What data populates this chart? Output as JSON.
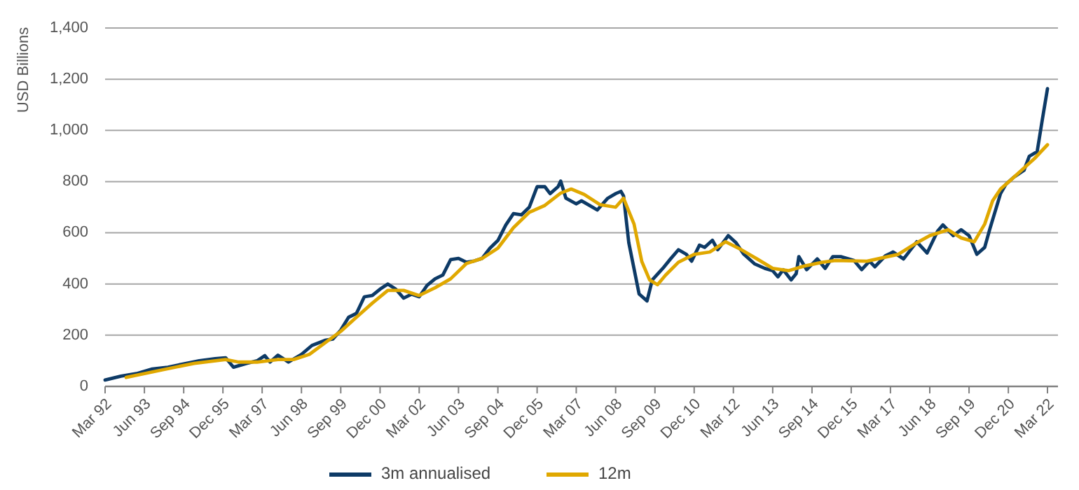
{
  "chart_data": {
    "type": "line",
    "ylabel": "USD Billions",
    "xlim": [
      "1992-03",
      "2022-07"
    ],
    "ylim": [
      0,
      1400
    ],
    "yticks": [
      0,
      {
        "value": 200,
        "label": "200"
      },
      {
        "value": 400,
        "label": "400"
      },
      {
        "value": 600,
        "label": "600"
      },
      {
        "value": 800,
        "label": "800"
      },
      {
        "value": 1000,
        "label": "1,000"
      },
      {
        "value": 1200,
        "label": "1,200"
      },
      {
        "value": 1400,
        "label": "1,400"
      }
    ],
    "xticks": [
      {
        "value": "1992-03",
        "label": "Mar 92"
      },
      {
        "value": "1993-06",
        "label": "Jun 93"
      },
      {
        "value": "1994-09",
        "label": "Sep 94"
      },
      {
        "value": "1995-12",
        "label": "Dec 95"
      },
      {
        "value": "1997-03",
        "label": "Mar 97"
      },
      {
        "value": "1998-06",
        "label": "Jun 98"
      },
      {
        "value": "1999-09",
        "label": "Sep 99"
      },
      {
        "value": "2000-12",
        "label": "Dec 00"
      },
      {
        "value": "2002-03",
        "label": "Mar 02"
      },
      {
        "value": "2003-06",
        "label": "Jun 03"
      },
      {
        "value": "2004-09",
        "label": "Sep 04"
      },
      {
        "value": "2005-12",
        "label": "Dec 05"
      },
      {
        "value": "2007-03",
        "label": "Mar 07"
      },
      {
        "value": "2008-06",
        "label": "Jun 08"
      },
      {
        "value": "2009-09",
        "label": "Sep 09"
      },
      {
        "value": "2010-12",
        "label": "Dec 10"
      },
      {
        "value": "2012-03",
        "label": "Mar 12"
      },
      {
        "value": "2013-06",
        "label": "Jun 13"
      },
      {
        "value": "2014-09",
        "label": "Sep 14"
      },
      {
        "value": "2015-12",
        "label": "Dec 15"
      },
      {
        "value": "2017-03",
        "label": "Mar 17"
      },
      {
        "value": "2018-06",
        "label": "Jun 18"
      },
      {
        "value": "2019-09",
        "label": "Sep 19"
      },
      {
        "value": "2020-12",
        "label": "Dec 20"
      },
      {
        "value": "2022-03",
        "label": "Mar 22"
      }
    ],
    "grid": "y",
    "legend": "bottom",
    "line_style": "solid",
    "series": [
      {
        "name": "3m annualised",
        "color": "#0d3a66",
        "x": [
          "1992-03",
          "1992-09",
          "1993-03",
          "1993-09",
          "1994-03",
          "1994-09",
          "1995-03",
          "1995-09",
          "1996-01",
          "1996-04",
          "1996-09",
          "1997-01",
          "1997-04",
          "1997-06",
          "1997-09",
          "1998-01",
          "1998-06",
          "1998-10",
          "1999-03",
          "1999-06",
          "1999-09",
          "1999-12",
          "2000-03",
          "2000-06",
          "2000-09",
          "2000-12",
          "2001-03",
          "2001-06",
          "2001-09",
          "2001-12",
          "2002-03",
          "2002-06",
          "2002-09",
          "2002-12",
          "2003-03",
          "2003-06",
          "2003-09",
          "2003-12",
          "2004-03",
          "2004-06",
          "2004-09",
          "2004-12",
          "2005-03",
          "2005-06",
          "2005-09",
          "2005-12",
          "2006-03",
          "2006-05",
          "2006-08",
          "2006-09",
          "2006-11",
          "2007-03",
          "2007-05",
          "2007-08",
          "2007-11",
          "2008-03",
          "2008-06",
          "2008-08",
          "2008-09",
          "2008-11",
          "2009-03",
          "2009-06",
          "2009-08",
          "2009-12",
          "2010-03",
          "2010-06",
          "2010-09",
          "2010-11",
          "2011-02",
          "2011-04",
          "2011-07",
          "2011-09",
          "2012-01",
          "2012-04",
          "2012-07",
          "2012-11",
          "2013-03",
          "2013-06",
          "2013-08",
          "2013-10",
          "2014-01",
          "2014-03",
          "2014-04",
          "2014-07",
          "2014-11",
          "2015-02",
          "2015-05",
          "2015-08",
          "2016-01",
          "2016-04",
          "2016-07",
          "2016-09",
          "2017-01",
          "2017-04",
          "2017-08",
          "2018-01",
          "2018-05",
          "2018-09",
          "2018-11",
          "2019-03",
          "2019-06",
          "2019-09",
          "2019-12",
          "2020-03",
          "2020-05",
          "2020-09",
          "2020-11",
          "2021-02",
          "2021-06",
          "2021-08",
          "2021-11",
          "2022-01",
          "2022-03"
        ],
        "values": [
          25,
          40,
          50,
          68,
          75,
          88,
          100,
          108,
          112,
          75,
          90,
          100,
          120,
          95,
          122,
          95,
          125,
          160,
          180,
          185,
          220,
          270,
          285,
          350,
          355,
          380,
          400,
          380,
          345,
          360,
          350,
          395,
          420,
          435,
          495,
          500,
          485,
          490,
          500,
          540,
          570,
          630,
          675,
          670,
          700,
          780,
          780,
          753,
          780,
          802,
          735,
          713,
          725,
          707,
          689,
          735,
          753,
          762,
          744,
          561,
          361,
          334,
          416,
          461,
          498,
          534,
          516,
          489,
          552,
          543,
          571,
          534,
          589,
          561,
          516,
          479,
          461,
          452,
          428,
          456,
          416,
          440,
          507,
          456,
          498,
          461,
          507,
          507,
          492,
          456,
          489,
          467,
          510,
          525,
          498,
          565,
          521,
          607,
          631,
          589,
          612,
          589,
          516,
          543,
          616,
          753,
          789,
          817,
          844,
          899,
          917,
          1044,
          1163
        ]
      },
      {
        "name": "12m",
        "color": "#e0a800",
        "x": [
          "1992-11",
          "1994-01",
          "1995-01",
          "1996-01",
          "1996-06",
          "1997-01",
          "1997-09",
          "1998-03",
          "1998-09",
          "1999-03",
          "1999-09",
          "2000-03",
          "2000-09",
          "2001-03",
          "2001-09",
          "2002-03",
          "2002-09",
          "2003-03",
          "2003-09",
          "2004-03",
          "2004-09",
          "2005-03",
          "2005-09",
          "2006-03",
          "2006-09",
          "2007-01",
          "2007-06",
          "2007-12",
          "2008-06",
          "2008-09",
          "2009-01",
          "2009-04",
          "2009-07",
          "2009-10",
          "2010-01",
          "2010-06",
          "2010-12",
          "2011-06",
          "2011-12",
          "2012-06",
          "2012-12",
          "2013-06",
          "2013-12",
          "2014-06",
          "2015-01",
          "2015-06",
          "2016-06",
          "2017-06",
          "2018-01",
          "2018-06",
          "2019-01",
          "2019-06",
          "2019-11",
          "2020-03",
          "2020-06",
          "2020-09",
          "2021-01",
          "2021-06",
          "2021-10",
          "2022-03"
        ],
        "values": [
          35,
          65,
          90,
          105,
          95,
          95,
          105,
          105,
          125,
          170,
          215,
          270,
          325,
          375,
          375,
          355,
          385,
          420,
          480,
          500,
          540,
          620,
          680,
          707,
          755,
          771,
          750,
          710,
          700,
          735,
          634,
          488,
          416,
          397,
          434,
          485,
          516,
          525,
          565,
          534,
          498,
          461,
          452,
          470,
          485,
          492,
          489,
          516,
          561,
          589,
          612,
          580,
          565,
          634,
          725,
          771,
          807,
          853,
          890,
          944
        ]
      }
    ]
  }
}
